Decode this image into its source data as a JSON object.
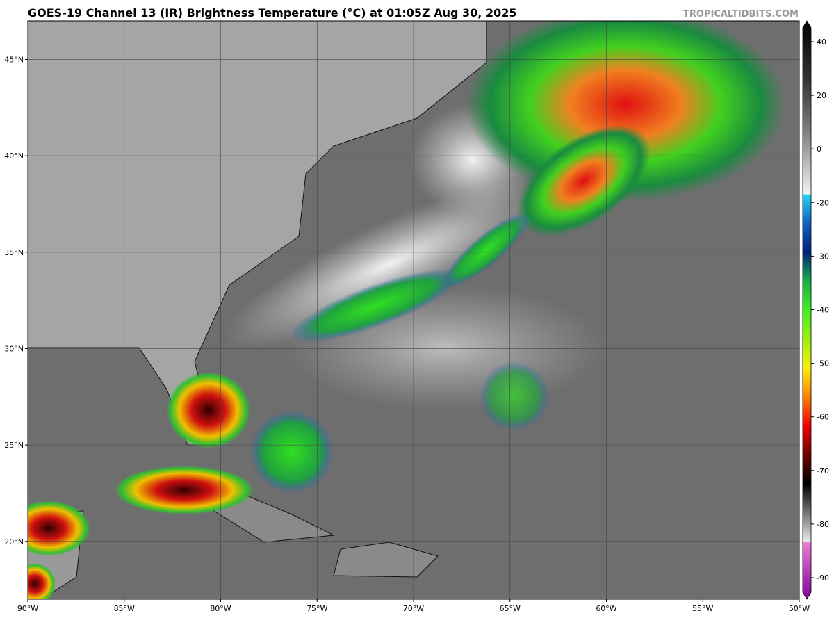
{
  "header": {
    "title": "GOES-19 Channel 13 (IR) Brightness Temperature (°C) at 01:05Z Aug 30, 2025",
    "credit": "TROPICALTIDBITS.COM"
  },
  "map": {
    "lon_range": [
      -90,
      -50
    ],
    "lat_range": [
      17,
      47
    ],
    "lat_ticks": [
      {
        "value": 45,
        "label": "45°N"
      },
      {
        "value": 40,
        "label": "40°N"
      },
      {
        "value": 35,
        "label": "35°N"
      },
      {
        "value": 30,
        "label": "30°N"
      },
      {
        "value": 25,
        "label": "25°N"
      },
      {
        "value": 20,
        "label": "20°N"
      }
    ],
    "lon_ticks": [
      {
        "value": -90,
        "label": "90°W"
      },
      {
        "value": -85,
        "label": "85°W"
      },
      {
        "value": -80,
        "label": "80°W"
      },
      {
        "value": -75,
        "label": "75°W"
      },
      {
        "value": -70,
        "label": "70°W"
      },
      {
        "value": -65,
        "label": "65°W"
      },
      {
        "value": -60,
        "label": "60°W"
      },
      {
        "value": -55,
        "label": "55°W"
      },
      {
        "value": -50,
        "label": "50°W"
      }
    ],
    "colorbar": {
      "ticks": [
        40,
        20,
        0,
        -20,
        -30,
        -40,
        -50,
        -60,
        -70,
        -80,
        -90
      ]
    }
  }
}
